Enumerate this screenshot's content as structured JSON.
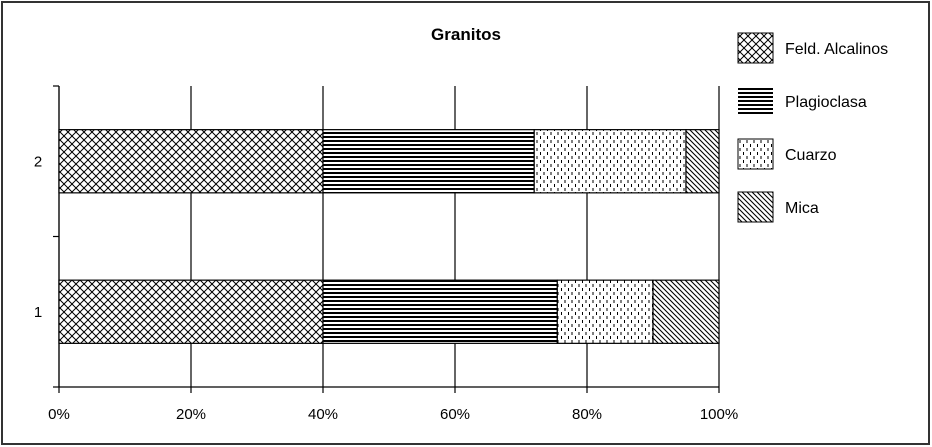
{
  "chart_data": {
    "type": "bar",
    "orientation": "horizontal",
    "stacked": "percent",
    "title": "Granitos",
    "xlabel": "",
    "ylabel": "",
    "categories": [
      "1",
      "2"
    ],
    "series": [
      {
        "name": "Feld. Alcalinos",
        "pattern": "cross-hatch",
        "values": [
          40,
          40
        ]
      },
      {
        "name": "Plagioclasa",
        "pattern": "horizontal-lines",
        "values": [
          35.5,
          32
        ]
      },
      {
        "name": "Cuarzo",
        "pattern": "dashed-vertical",
        "values": [
          14.5,
          23
        ]
      },
      {
        "name": "Mica",
        "pattern": "diagonal-lines",
        "values": [
          10,
          5
        ]
      }
    ],
    "xlim": [
      0,
      100
    ],
    "xticks": [
      "0%",
      "20%",
      "40%",
      "60%",
      "80%",
      "100%"
    ],
    "grid": "vertical",
    "legend_position": "right",
    "colors": {
      "fill": "#ffffff",
      "stroke": "#000000",
      "background": "#ffffff",
      "border": "#333333"
    }
  }
}
